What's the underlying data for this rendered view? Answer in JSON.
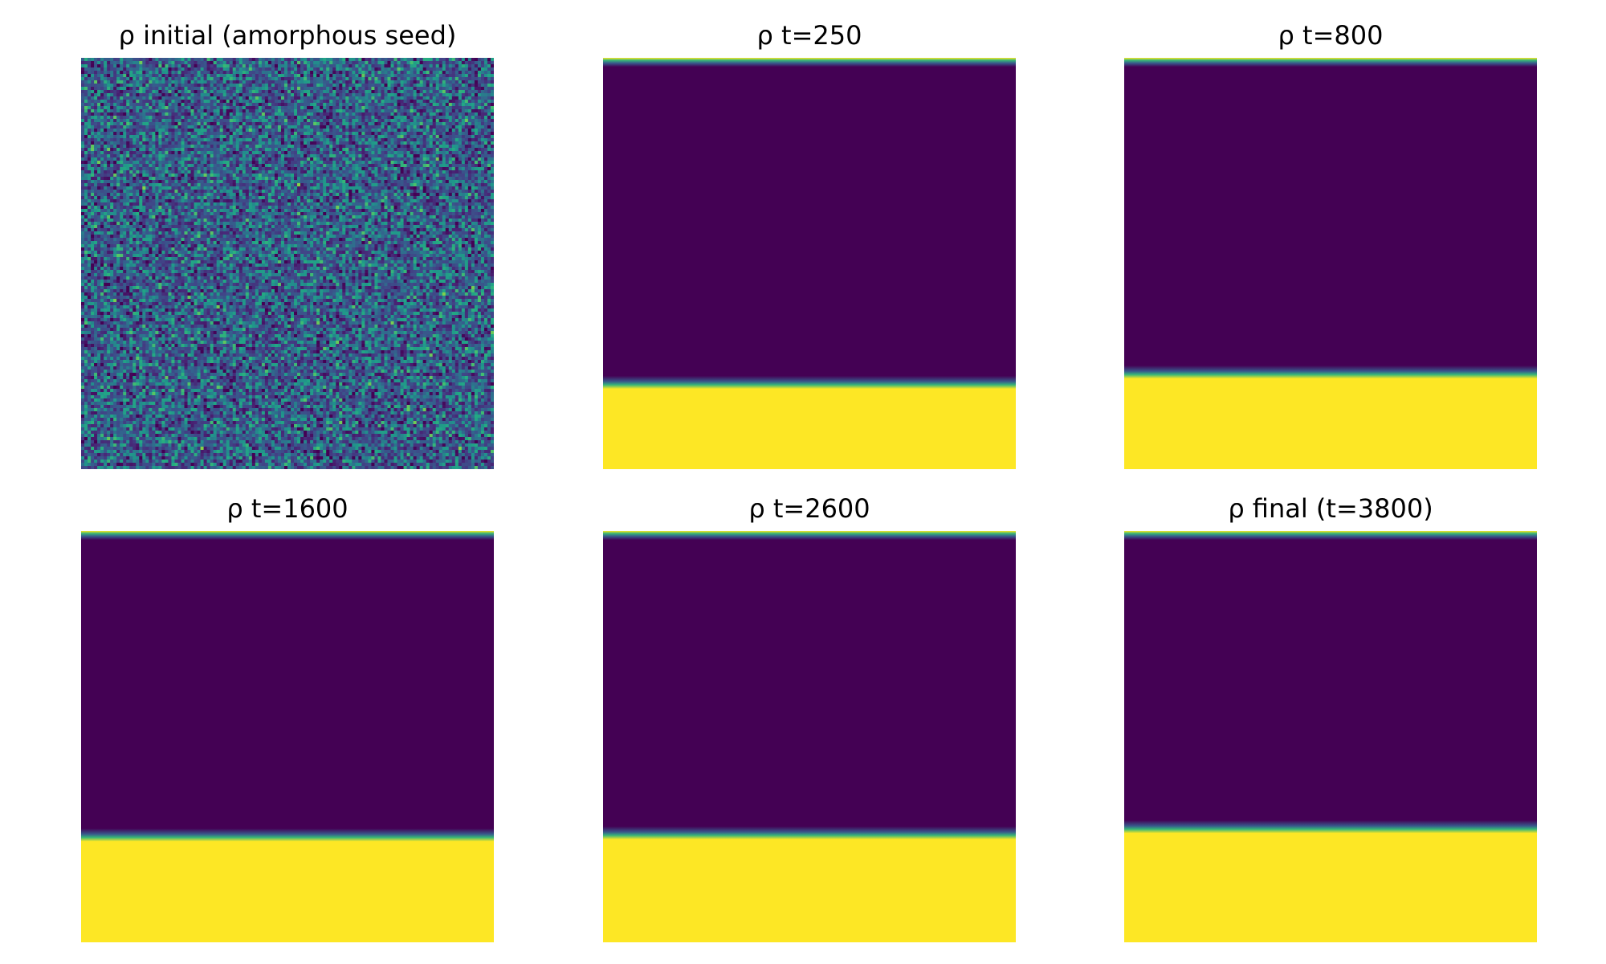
{
  "colormap": {
    "name": "viridis",
    "low": "#440154",
    "mid": "#21918c",
    "high": "#fde725"
  },
  "chart_data": [
    {
      "type": "heatmap",
      "title": "ρ initial (amorphous seed)",
      "pattern": "random-noise",
      "mean_value": 0.35,
      "noise_amplitude": 0.35,
      "interface_fraction_bottom": null,
      "top_edge_band": false
    },
    {
      "type": "heatmap",
      "title": "ρ t=250",
      "pattern": "two-phase",
      "low_value": 0.0,
      "high_value": 1.0,
      "interface_fraction_bottom": 0.795,
      "top_edge_band": true
    },
    {
      "type": "heatmap",
      "title": "ρ t=800",
      "pattern": "two-phase",
      "low_value": 0.0,
      "high_value": 1.0,
      "interface_fraction_bottom": 0.77,
      "top_edge_band": true
    },
    {
      "type": "heatmap",
      "title": "ρ t=1600",
      "pattern": "two-phase",
      "low_value": 0.0,
      "high_value": 1.0,
      "interface_fraction_bottom": 0.745,
      "top_edge_band": true
    },
    {
      "type": "heatmap",
      "title": "ρ t=2600",
      "pattern": "two-phase",
      "low_value": 0.0,
      "high_value": 1.0,
      "interface_fraction_bottom": 0.74,
      "top_edge_band": true
    },
    {
      "type": "heatmap",
      "title": "ρ final (t=3800)",
      "pattern": "two-phase",
      "low_value": 0.0,
      "high_value": 1.0,
      "interface_fraction_bottom": 0.725,
      "top_edge_band": true
    }
  ]
}
